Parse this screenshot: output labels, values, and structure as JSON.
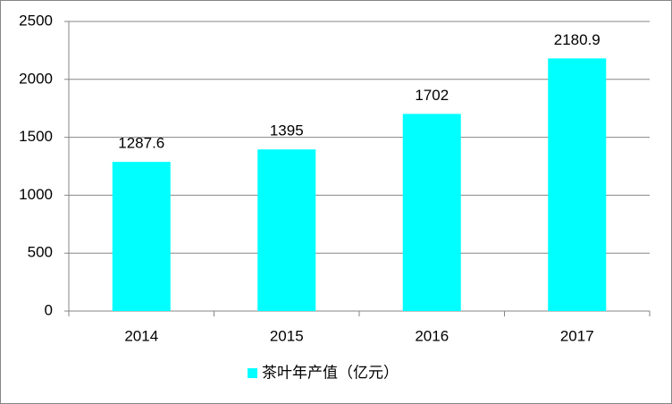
{
  "chart_data": {
    "type": "bar",
    "categories": [
      "2014",
      "2015",
      "2016",
      "2017"
    ],
    "series": [
      {
        "name": "茶叶年产值（亿元）",
        "color": "#00ffff",
        "values": [
          1287.6,
          1395,
          1702,
          2180.9
        ]
      }
    ],
    "ylim": [
      0,
      2500
    ],
    "yticks": [
      0,
      500,
      1000,
      1500,
      2000,
      2500
    ],
    "grid": true,
    "legend": "bottom",
    "data_labels": true
  }
}
